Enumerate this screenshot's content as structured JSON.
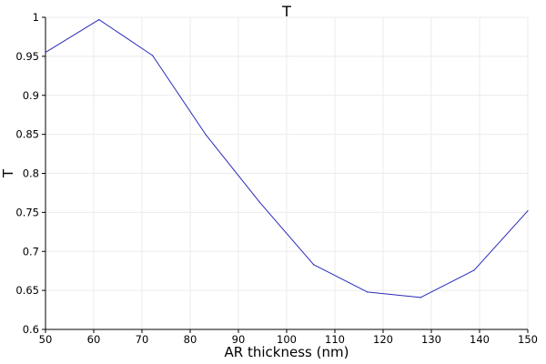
{
  "chart_data": {
    "type": "line",
    "title": "T",
    "xlabel": "AR thickness (nm)",
    "ylabel": "T",
    "xlim": [
      50,
      150
    ],
    "ylim": [
      0.6,
      1.0
    ],
    "x_ticks": [
      50,
      60,
      70,
      80,
      90,
      100,
      110,
      120,
      130,
      140,
      150
    ],
    "y_ticks": [
      0.6,
      0.65,
      0.7,
      0.75,
      0.8,
      0.85,
      0.9,
      0.95,
      1.0
    ],
    "x_tick_labels": [
      "50",
      "60",
      "70",
      "80",
      "90",
      "100",
      "110",
      "120",
      "130",
      "140",
      "150"
    ],
    "y_tick_labels": [
      "0.6",
      "0.65",
      "0.7",
      "0.75",
      "0.8",
      "0.85",
      "0.9",
      "0.95",
      "1"
    ],
    "grid": true,
    "series": [
      {
        "x": [
          50,
          61.1,
          72.2,
          83.3,
          94.4,
          105.6,
          116.7,
          127.8,
          138.9,
          150
        ],
        "values": [
          0.955,
          0.997,
          0.951,
          0.849,
          0.763,
          0.683,
          0.648,
          0.641,
          0.676,
          0.752
        ],
        "color": "#2a2ab8"
      }
    ]
  }
}
